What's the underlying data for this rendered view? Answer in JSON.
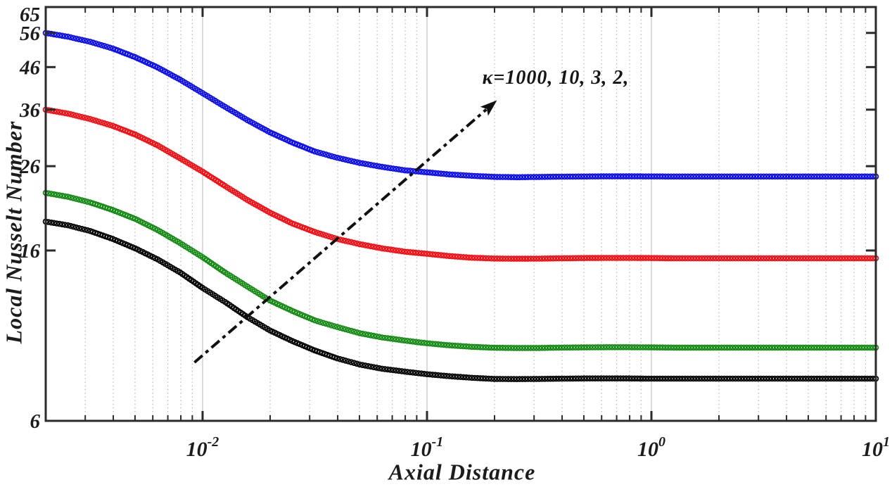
{
  "figure": {
    "background": "#ffffff"
  },
  "chart_data": {
    "type": "line",
    "title": "",
    "xlabel": "Axial Distance",
    "ylabel": "Local Nusselt Number",
    "xscale": "log",
    "yscale": "log",
    "xlim": [
      0.002,
      10
    ],
    "ylim": [
      6,
      65
    ],
    "y_ticks": [
      6,
      16,
      26,
      36,
      46,
      56,
      65
    ],
    "x_major_ticks": [
      0.01,
      0.1,
      1,
      10
    ],
    "x_tick_exponents": [
      -2,
      -1,
      0,
      1
    ],
    "grid": {
      "minor_vertical": "dotted",
      "major_vertical": "solid",
      "horizontal": "none"
    },
    "legend_position": "none",
    "marker": "o",
    "x": [
      0.002,
      0.00251,
      0.00316,
      0.00398,
      0.00501,
      0.00631,
      0.00794,
      0.01,
      0.01259,
      0.01585,
      0.01995,
      0.02512,
      0.03162,
      0.03981,
      0.05012,
      0.0631,
      0.07943,
      0.1,
      0.12589,
      0.15849,
      0.19953,
      0.25119,
      0.31623,
      0.39811,
      0.50119,
      0.63096,
      0.79433,
      1,
      1.25893,
      1.58489,
      1.99526,
      2.51189,
      3.16228,
      3.98107,
      5.01187,
      6.30957,
      7.94328,
      10
    ],
    "series": [
      {
        "name": "κ=1000",
        "color": "#0a0af2",
        "y": [
          56.0,
          54.8,
          53.2,
          51.2,
          48.7,
          45.9,
          42.8,
          39.6,
          36.6,
          33.9,
          31.6,
          29.8,
          28.3,
          27.3,
          26.5,
          25.9,
          25.4,
          25.1,
          24.8,
          24.6,
          24.45,
          24.4,
          24.44,
          24.48,
          24.5,
          24.52,
          24.52,
          24.51,
          24.5,
          24.5,
          24.5,
          24.5,
          24.5,
          24.5,
          24.5,
          24.5,
          24.5,
          24.5
        ]
      },
      {
        "name": "κ=10",
        "color": "#f70a10",
        "y": [
          36.0,
          35.2,
          34.1,
          32.8,
          31.2,
          29.3,
          27.2,
          25.2,
          23.2,
          21.4,
          19.9,
          18.7,
          17.8,
          17.1,
          16.6,
          16.2,
          15.9,
          15.7,
          15.5,
          15.35,
          15.28,
          15.26,
          15.27,
          15.3,
          15.32,
          15.33,
          15.33,
          15.32,
          15.3,
          15.3,
          15.3,
          15.3,
          15.3,
          15.3,
          15.3,
          15.3,
          15.3,
          15.3
        ]
      },
      {
        "name": "κ=3",
        "color": "#128a12",
        "y": [
          22.3,
          21.8,
          21.1,
          20.2,
          19.2,
          18.0,
          16.7,
          15.4,
          14.1,
          13.0,
          12.0,
          11.3,
          10.7,
          10.3,
          9.94,
          9.7,
          9.53,
          9.38,
          9.27,
          9.19,
          9.14,
          9.13,
          9.13,
          9.15,
          9.16,
          9.17,
          9.17,
          9.16,
          9.15,
          9.15,
          9.15,
          9.15,
          9.15,
          9.15,
          9.15,
          9.15,
          9.15,
          9.15
        ]
      },
      {
        "name": "κ=2",
        "color": "#000000",
        "y": [
          18.9,
          18.5,
          17.9,
          17.1,
          16.2,
          15.2,
          14.1,
          12.9,
          11.9,
          10.9,
          10.1,
          9.5,
          9.0,
          8.6,
          8.3,
          8.1,
          7.97,
          7.85,
          7.76,
          7.69,
          7.64,
          7.63,
          7.64,
          7.65,
          7.66,
          7.66,
          7.66,
          7.65,
          7.65,
          7.65,
          7.65,
          7.65,
          7.65,
          7.65,
          7.65,
          7.65,
          7.65,
          7.65
        ]
      }
    ],
    "annotation": {
      "text": "κ=1000, 10, 3, 2,",
      "arrow": {
        "x1": 0.0092,
        "y1": 8.4,
        "x2": 0.205,
        "y2": 38.0,
        "style": "dash-dot",
        "color": "#111111"
      }
    },
    "colors": {
      "frame": "#2b2b2b",
      "minor_grid": "#bfbfbf",
      "major_grid": "#cccccc",
      "tick_label": "#1c1c1c"
    }
  }
}
